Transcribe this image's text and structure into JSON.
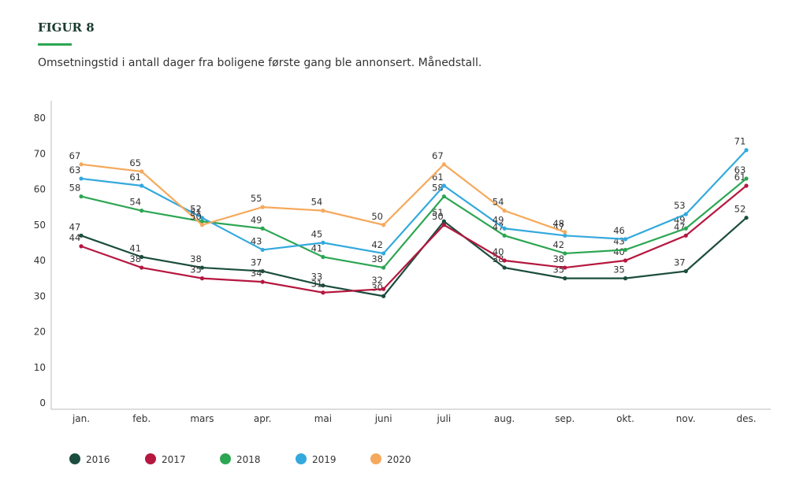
{
  "chart_data": {
    "type": "line",
    "title": "FIGUR 8",
    "subtitle": "Omsetningstid i antall dager fra boligene første gang ble annonsert. Månedstall.",
    "categories": [
      "jan.",
      "feb.",
      "mars",
      "apr.",
      "mai",
      "juni",
      "juli",
      "aug.",
      "sep.",
      "okt.",
      "nov.",
      "des."
    ],
    "series": [
      {
        "name": "2016",
        "color": "#1b4d3e",
        "values": [
          47,
          41,
          38,
          37,
          33,
          30,
          51,
          38,
          35,
          35,
          37,
          52
        ]
      },
      {
        "name": "2017",
        "color": "#b5173f",
        "values": [
          44,
          38,
          35,
          34,
          31,
          32,
          50,
          40,
          38,
          40,
          47,
          61
        ]
      },
      {
        "name": "2018",
        "color": "#2ca652",
        "values": [
          58,
          54,
          51,
          49,
          41,
          38,
          58,
          47,
          42,
          43,
          49,
          63
        ]
      },
      {
        "name": "2019",
        "color": "#33a9dd",
        "values": [
          63,
          61,
          52,
          43,
          45,
          42,
          61,
          49,
          47,
          46,
          53,
          71
        ]
      },
      {
        "name": "2020",
        "color": "#f5a95c",
        "values": [
          67,
          65,
          50,
          55,
          54,
          50,
          67,
          54,
          48,
          null,
          null,
          null
        ]
      }
    ],
    "ylim": [
      0,
      80
    ],
    "yticks": [
      0,
      10,
      20,
      30,
      40,
      50,
      60,
      70,
      80
    ],
    "grid": false,
    "legend": "bottom"
  }
}
